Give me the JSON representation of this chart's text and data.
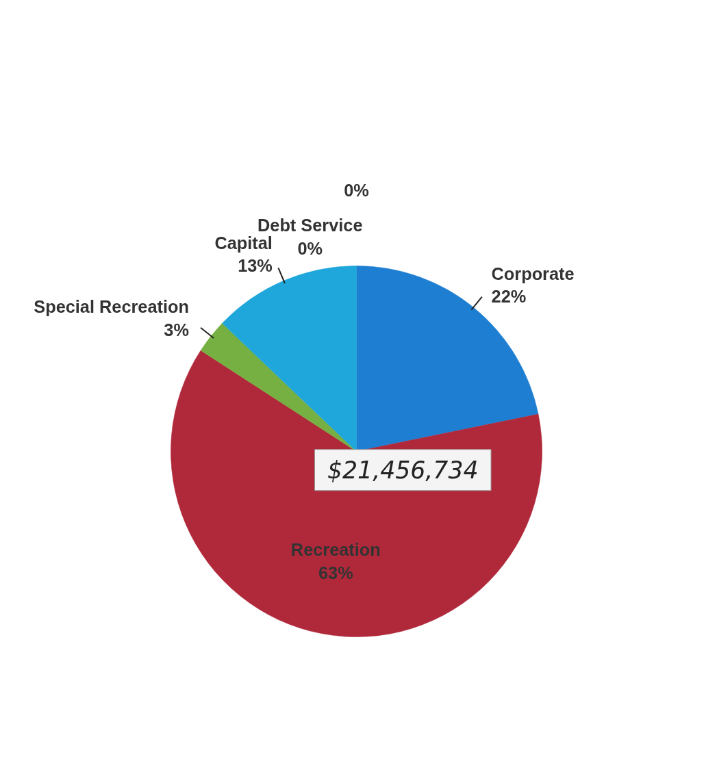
{
  "chart_data": {
    "type": "pie",
    "categories": [
      "Debt Service",
      null,
      "Corporate",
      "Recreation",
      "Special Recreation",
      "Capital"
    ],
    "values": [
      0,
      0,
      22,
      63,
      3,
      13
    ],
    "value_labels": [
      "0%",
      "0%",
      "22%",
      "63%",
      "3%",
      "13%"
    ],
    "colors": [
      "#2a5ea8",
      "#6a8fc4",
      "#1e7fd2",
      "#b0293b",
      "#76b043",
      "#1fa6da"
    ],
    "annotations": [
      "$21,456,734"
    ]
  }
}
